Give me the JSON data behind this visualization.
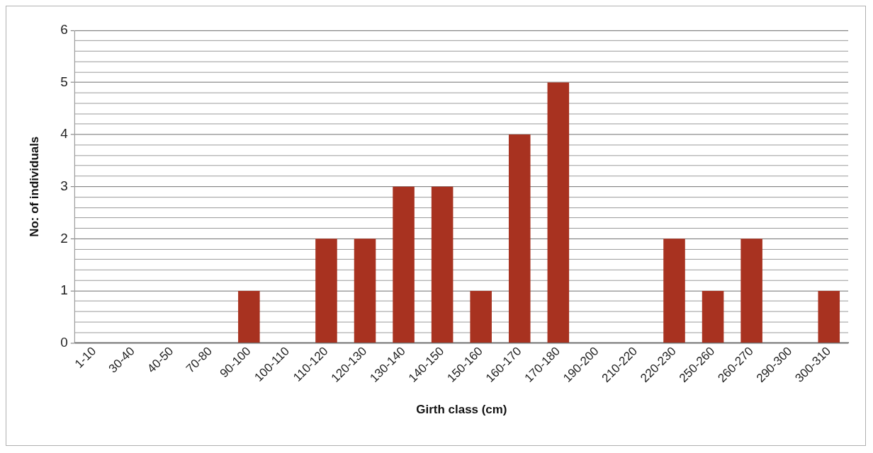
{
  "chart_data": {
    "type": "bar",
    "xlabel": "Girth class (cm)",
    "ylabel": "No: of individuals",
    "categories": [
      "1-10",
      "30-40",
      "40-50",
      "70-80",
      "90-100",
      "100-110",
      "110-120",
      "120-130",
      "130-140",
      "140-150",
      "150-160",
      "160-170",
      "170-180",
      "190-200",
      "210-220",
      "220-230",
      "250-260",
      "260-270",
      "290-300",
      "300-310"
    ],
    "values": [
      0,
      0,
      0,
      0,
      1,
      0,
      2,
      2,
      3,
      3,
      1,
      4,
      5,
      0,
      0,
      2,
      1,
      2,
      0,
      1
    ],
    "color": "#a83220",
    "ylim": [
      0,
      6
    ],
    "yticks": [
      0,
      {
        "value": 0.2,
        "label": null
      },
      {
        "value": 0.4,
        "label": null
      },
      {
        "value": 0.6,
        "label": null
      },
      {
        "value": 0.8,
        "label": null
      },
      1,
      {
        "value": 1.2,
        "label": null
      },
      {
        "value": 1.4,
        "label": null
      },
      {
        "value": 1.6,
        "label": null
      },
      {
        "value": 1.8,
        "label": null
      },
      2,
      {
        "value": 2.2,
        "label": null
      },
      {
        "value": 2.4,
        "label": null
      },
      {
        "value": 2.6,
        "label": null
      },
      {
        "value": 2.8,
        "label": null
      },
      3,
      {
        "value": 3.2,
        "label": null
      },
      {
        "value": 3.4,
        "label": null
      },
      {
        "value": 3.6,
        "label": null
      },
      {
        "value": 3.8,
        "label": null
      },
      4,
      {
        "value": 4.2,
        "label": null
      },
      {
        "value": 4.4,
        "label": null
      },
      {
        "value": 4.6,
        "label": null
      },
      {
        "value": 4.8,
        "label": null
      },
      5,
      {
        "value": 5.2,
        "label": null
      },
      {
        "value": 5.4,
        "label": null
      },
      {
        "value": 5.6,
        "label": null
      },
      {
        "value": 5.8,
        "label": null
      },
      6
    ],
    "grid": "y"
  }
}
